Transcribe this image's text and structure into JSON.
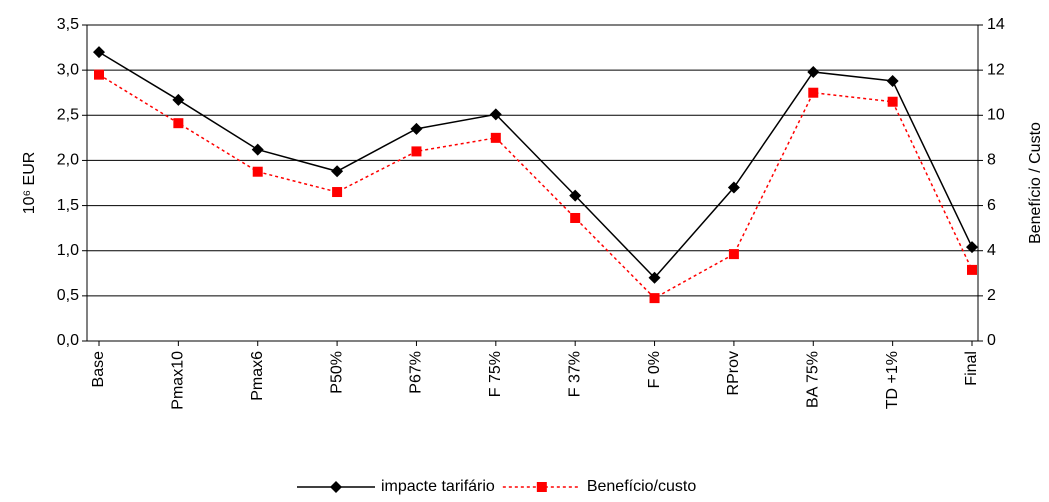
{
  "chart_data": {
    "type": "line",
    "categories": [
      "Base",
      "Pmax10",
      "Pmax6",
      "P50%",
      "P67%",
      "F 75%",
      "F 37%",
      "F 0%",
      "RProv",
      "BA 75%",
      "TD +1%",
      "Final"
    ],
    "series": [
      {
        "name": "impacte tarifário",
        "color": "#000000",
        "values": [
          3.2,
          2.67,
          2.12,
          1.88,
          2.35,
          2.51,
          1.61,
          0.7,
          1.7,
          2.98,
          2.88,
          1.04
        ]
      },
      {
        "name": "Benefício/custo",
        "color": "#ff0000",
        "axis": "y2",
        "values": [
          11.8,
          9.65,
          7.5,
          6.6,
          8.4,
          9.0,
          5.45,
          1.9,
          3.85,
          11.0,
          10.6,
          3.15
        ]
      }
    ],
    "ylabel": "10⁶ EUR",
    "y2label": "Benefício / Custo",
    "ylim": [
      0,
      3.5
    ],
    "yticks": [
      {
        "value": 0,
        "label": "0,0"
      },
      {
        "value": 0.5,
        "label": "0,5"
      },
      {
        "value": 1,
        "label": "1,0"
      },
      {
        "value": 1.5,
        "label": "1,5"
      },
      {
        "value": 2,
        "label": "2,0"
      },
      {
        "value": 2.5,
        "label": "2,5"
      },
      {
        "value": 3,
        "label": "3,0"
      },
      {
        "value": 3.5,
        "label": "3,5"
      }
    ],
    "y2lim": [
      0,
      14
    ],
    "y2ticks": [
      0,
      2,
      4,
      6,
      8,
      10,
      12,
      14
    ],
    "grid": true,
    "legend": "bottom"
  }
}
